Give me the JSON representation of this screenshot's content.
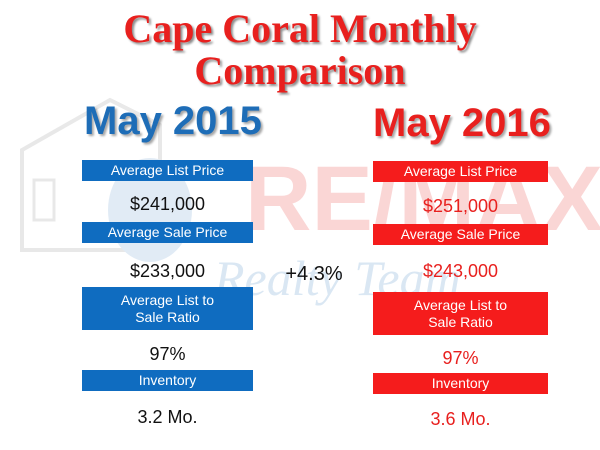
{
  "title_line1": "Cape Coral Monthly",
  "title_line2": "Comparison",
  "watermark": {
    "brand": "RE/MAX",
    "tagline": "Realty Team"
  },
  "change_label": "+4.3%",
  "left": {
    "year": "May 2015",
    "color": "#0f6cc0",
    "rows": [
      {
        "label": "Average List Price",
        "value": "$241,000"
      },
      {
        "label": "Average Sale Price",
        "value": "$233,000"
      },
      {
        "label_line1": "Average List to",
        "label_line2": "Sale Ratio",
        "value": "97%"
      },
      {
        "label": "Inventory",
        "value": "3.2 Mo."
      }
    ]
  },
  "right": {
    "year": "May 2016",
    "color": "#f51c1c",
    "rows": [
      {
        "label": "Average List Price",
        "value": "$251,000"
      },
      {
        "label": "Average Sale Price",
        "value": "$243,000"
      },
      {
        "label_line1": "Average List to",
        "label_line2": "Sale Ratio",
        "value": "97%"
      },
      {
        "label": "Inventory",
        "value": "3.6 Mo."
      }
    ]
  }
}
